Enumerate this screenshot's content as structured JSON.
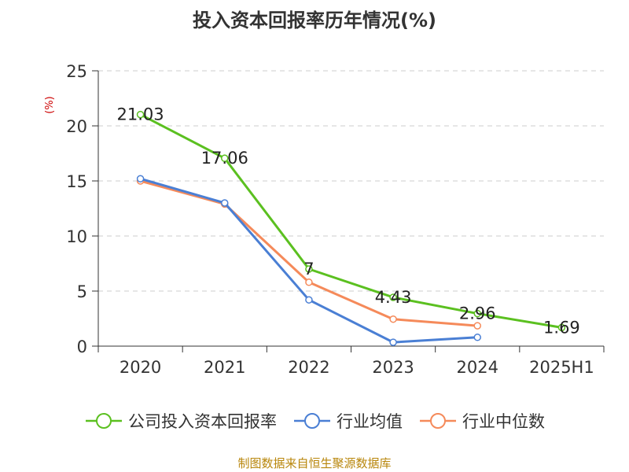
{
  "title": "投入资本回报率历年情况(%)",
  "y_unit": "(%)",
  "footer": "制图数据来自恒生聚源数据库",
  "footer_color": "#b8860b",
  "chart_data": {
    "type": "line",
    "title": "投入资本回报率历年情况(%)",
    "xlabel": "",
    "ylabel": "(%)",
    "categories": [
      "2020",
      "2021",
      "2022",
      "2023",
      "2024",
      "2025H1"
    ],
    "ylim": [
      0,
      25
    ],
    "yticks": [
      0,
      5,
      10,
      15,
      20,
      25
    ],
    "grid": true,
    "legend_position": "bottom",
    "series": [
      {
        "name": "公司投入资本回报率",
        "color": "#5bc020",
        "values": [
          21.03,
          17.06,
          7,
          4.43,
          2.96,
          1.69
        ],
        "labels": [
          "21.03",
          "17.06",
          "7",
          "4.43",
          "2.96",
          "1.69"
        ]
      },
      {
        "name": "行业均值",
        "color": "#4a7fd4",
        "values": [
          15.2,
          13.0,
          4.2,
          0.35,
          0.8,
          null
        ]
      },
      {
        "name": "行业中位数",
        "color": "#f58a5a",
        "values": [
          15.0,
          12.9,
          5.8,
          2.45,
          1.85,
          null
        ]
      }
    ]
  }
}
